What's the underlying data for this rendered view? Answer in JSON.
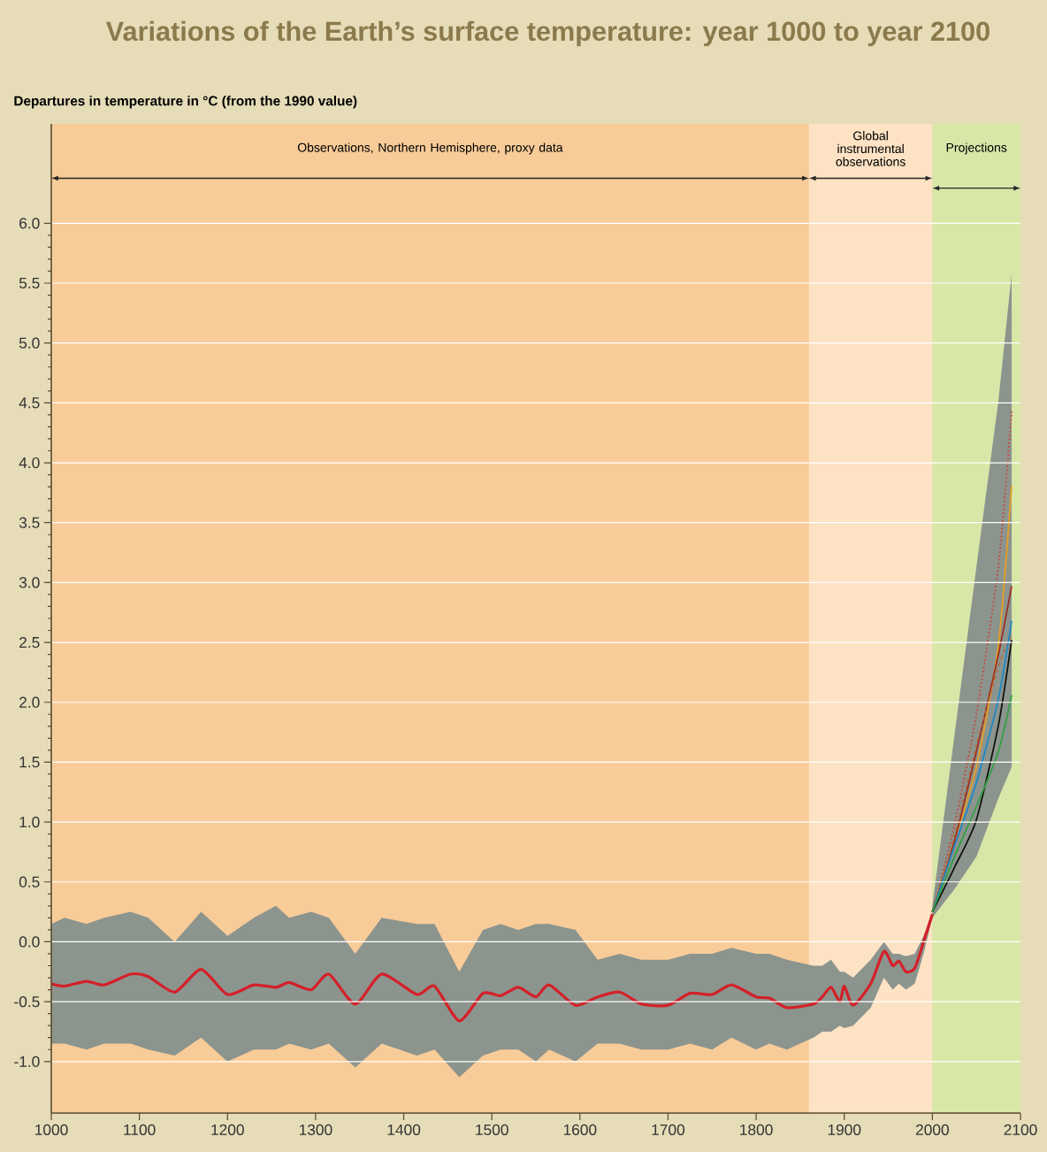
{
  "chart_data": {
    "type": "line",
    "title": "Variations of the Earth’s surface temperature: year 1000 to year 2100",
    "ylabel": "Departures in temperature in °C (from the 1990 value)",
    "xlim": [
      1000,
      2100
    ],
    "ylim": [
      -1.43,
      6.83
    ],
    "xticks": [
      1000,
      1100,
      1200,
      1300,
      1400,
      1500,
      1600,
      1700,
      1800,
      1900,
      2000,
      2100
    ],
    "yticks": [
      {
        "value": -1,
        "label": "-1.0"
      },
      {
        "value": -0.5,
        "label": "-0.5"
      },
      {
        "value": 0,
        "label": "0.0"
      },
      {
        "value": 0.5,
        "label": "0.5"
      },
      {
        "value": 1,
        "label": "1.0"
      },
      {
        "value": 1.5,
        "label": "1.5"
      },
      {
        "value": 2,
        "label": "2.0"
      },
      {
        "value": 2.5,
        "label": "2.5"
      },
      {
        "value": 3,
        "label": "3.0"
      },
      {
        "value": 3.5,
        "label": "3.5"
      },
      {
        "value": 4,
        "label": "4.0"
      },
      {
        "value": 4.5,
        "label": "4.5"
      },
      {
        "value": 5,
        "label": "5.0"
      },
      {
        "value": 5.5,
        "label": "5.5"
      },
      {
        "value": 6,
        "label": "6.0"
      }
    ],
    "grid": "y",
    "bands": [
      {
        "axis": "x",
        "from": 1000,
        "to": 1860,
        "label": "Observations, Northern Hemisphere, proxy data",
        "color": "#f8cc98"
      },
      {
        "axis": "x",
        "from": 1860,
        "to": 2000,
        "label": "Global instrumental observations",
        "color": "#fde2c4"
      },
      {
        "axis": "x",
        "from": 2000,
        "to": 2100,
        "label": "Projections",
        "color": "#d8e7a8"
      }
    ],
    "series": [
      {
        "color": "#d42028",
        "x": [
          1000,
          1015,
          1040,
          1060,
          1090,
          1110,
          1140,
          1170,
          1200,
          1230,
          1255,
          1270,
          1295,
          1315,
          1345,
          1375,
          1415,
          1435,
          1463,
          1490,
          1510,
          1530,
          1550,
          1565,
          1595,
          1620,
          1645,
          1670,
          1700,
          1725,
          1750,
          1772,
          1800,
          1815,
          1835,
          1865,
          1875,
          1885,
          1895,
          1900,
          1910,
          1930,
          1945,
          1955,
          1962,
          1970,
          1980,
          1990,
          2000
        ],
        "values": [
          -0.35,
          -0.37,
          -0.33,
          -0.36,
          -0.27,
          -0.29,
          -0.42,
          -0.23,
          -0.44,
          -0.36,
          -0.38,
          -0.34,
          -0.4,
          -0.27,
          -0.52,
          -0.27,
          -0.44,
          -0.37,
          -0.66,
          -0.43,
          -0.45,
          -0.38,
          -0.46,
          -0.36,
          -0.53,
          -0.46,
          -0.42,
          -0.52,
          -0.53,
          -0.43,
          -0.44,
          -0.36,
          -0.46,
          -0.47,
          -0.55,
          -0.52,
          -0.46,
          -0.38,
          -0.5,
          -0.37,
          -0.53,
          -0.35,
          -0.08,
          -0.2,
          -0.16,
          -0.25,
          -0.22,
          0.0,
          0.23
        ],
        "lower": [
          -0.85,
          -0.85,
          -0.9,
          -0.85,
          -0.85,
          -0.9,
          -0.95,
          -0.8,
          -1.0,
          -0.9,
          -0.9,
          -0.85,
          -0.9,
          -0.85,
          -1.05,
          -0.85,
          -0.95,
          -0.9,
          -1.13,
          -0.95,
          -0.9,
          -0.9,
          -1.0,
          -0.9,
          -1.0,
          -0.85,
          -0.85,
          -0.9,
          -0.9,
          -0.85,
          -0.9,
          -0.8,
          -0.9,
          -0.85,
          -0.9,
          -0.8,
          -0.75,
          -0.75,
          -0.7,
          -0.72,
          -0.7,
          -0.55,
          -0.3,
          -0.4,
          -0.35,
          -0.4,
          -0.35,
          -0.1,
          0.2
        ],
        "upper": [
          0.15,
          0.2,
          0.15,
          0.2,
          0.25,
          0.2,
          0.0,
          0.25,
          0.05,
          0.2,
          0.3,
          0.2,
          0.25,
          0.2,
          -0.1,
          0.2,
          0.15,
          0.15,
          -0.25,
          0.1,
          0.15,
          0.1,
          0.15,
          0.15,
          0.1,
          -0.15,
          -0.1,
          -0.15,
          -0.15,
          -0.1,
          -0.1,
          -0.05,
          -0.1,
          -0.1,
          -0.15,
          -0.2,
          -0.2,
          -0.15,
          -0.25,
          -0.25,
          -0.3,
          -0.15,
          0.0,
          -0.1,
          -0.1,
          -0.12,
          -0.1,
          0.05,
          0.25
        ]
      },
      {
        "color": "#d04030",
        "line_style": "dotted",
        "x": [
          2000,
          2025,
          2050,
          2075,
          2090
        ],
        "values": [
          0.25,
          0.97,
          1.9,
          3.14,
          4.43
        ]
      },
      {
        "color": "#e8a020",
        "x": [
          2000,
          2025,
          2050,
          2075,
          2090
        ],
        "values": [
          0.25,
          0.84,
          1.46,
          2.48,
          3.81
        ]
      },
      {
        "color": "#9a2c20",
        "x": [
          2000,
          2025,
          2050,
          2075,
          2090
        ],
        "values": [
          0.25,
          0.84,
          1.59,
          2.4,
          2.97
        ]
      },
      {
        "color": "#b06a40",
        "line_style": "dashed",
        "x": [
          2000,
          2025,
          2050,
          2075,
          2090
        ],
        "values": [
          0.25,
          0.88,
          1.64,
          2.3,
          2.57
        ]
      },
      {
        "color": "#1a88c8",
        "x": [
          2000,
          2025,
          2050,
          2075,
          2090
        ],
        "values": [
          0.25,
          0.8,
          1.33,
          2.03,
          2.68
        ]
      },
      {
        "color": "#10100c",
        "x": [
          2000,
          2025,
          2050,
          2075,
          2090
        ],
        "values": [
          0.25,
          0.62,
          1.02,
          1.81,
          2.52
        ],
        "lower": [
          0.2,
          0.44,
          0.71,
          1.2,
          1.46
        ],
        "upper": [
          0.3,
          1.72,
          3.13,
          4.52,
          5.58
        ]
      },
      {
        "color": "#30a040",
        "x": [
          2000,
          2025,
          2050,
          2075,
          2090
        ],
        "values": [
          0.25,
          0.71,
          1.13,
          1.59,
          2.06
        ]
      }
    ]
  }
}
